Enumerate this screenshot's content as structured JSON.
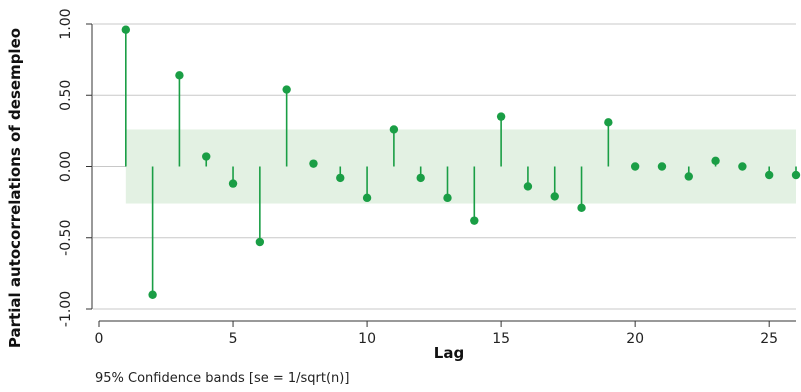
{
  "chart_data": {
    "type": "scatter",
    "style": "stem",
    "ylabel": "Partial autocorrelations of desempleo",
    "xlabel": "Lag",
    "note": "95% Confidence bands [se = 1/sqrt(n)]",
    "xlim": [
      0,
      26
    ],
    "ylim": [
      -1.0,
      1.0
    ],
    "x_ticks": [
      0,
      5,
      10,
      15,
      20,
      25
    ],
    "x_tick_labels": [
      "0",
      "5",
      "10",
      "15",
      "20",
      "25"
    ],
    "y_ticks": [
      -1.0,
      -0.5,
      0.0,
      0.5,
      1.0
    ],
    "y_tick_labels": [
      "-1.00",
      "-0.50",
      "0.00",
      "0.50",
      "1.00"
    ],
    "grid": true,
    "confidence_band": 0.26,
    "series": [
      {
        "x": [
          1,
          2,
          3,
          4,
          5,
          6,
          7,
          8,
          9,
          10,
          11,
          12,
          13,
          14,
          15,
          16,
          17,
          18,
          19,
          20,
          21,
          22,
          23,
          24,
          25,
          26
        ],
        "values": [
          0.96,
          -0.9,
          0.64,
          0.07,
          -0.12,
          -0.53,
          0.54,
          0.02,
          -0.08,
          -0.22,
          0.26,
          -0.08,
          -0.22,
          -0.38,
          0.35,
          -0.14,
          -0.21,
          -0.29,
          0.31,
          0.0,
          0.0,
          -0.07,
          0.04,
          0.0,
          -0.06,
          -0.06
        ]
      }
    ],
    "colors": {
      "stem": "#1a9e45",
      "band": "#e3f1e3",
      "grid": "#c8c8c8",
      "axis": "#333333"
    }
  }
}
